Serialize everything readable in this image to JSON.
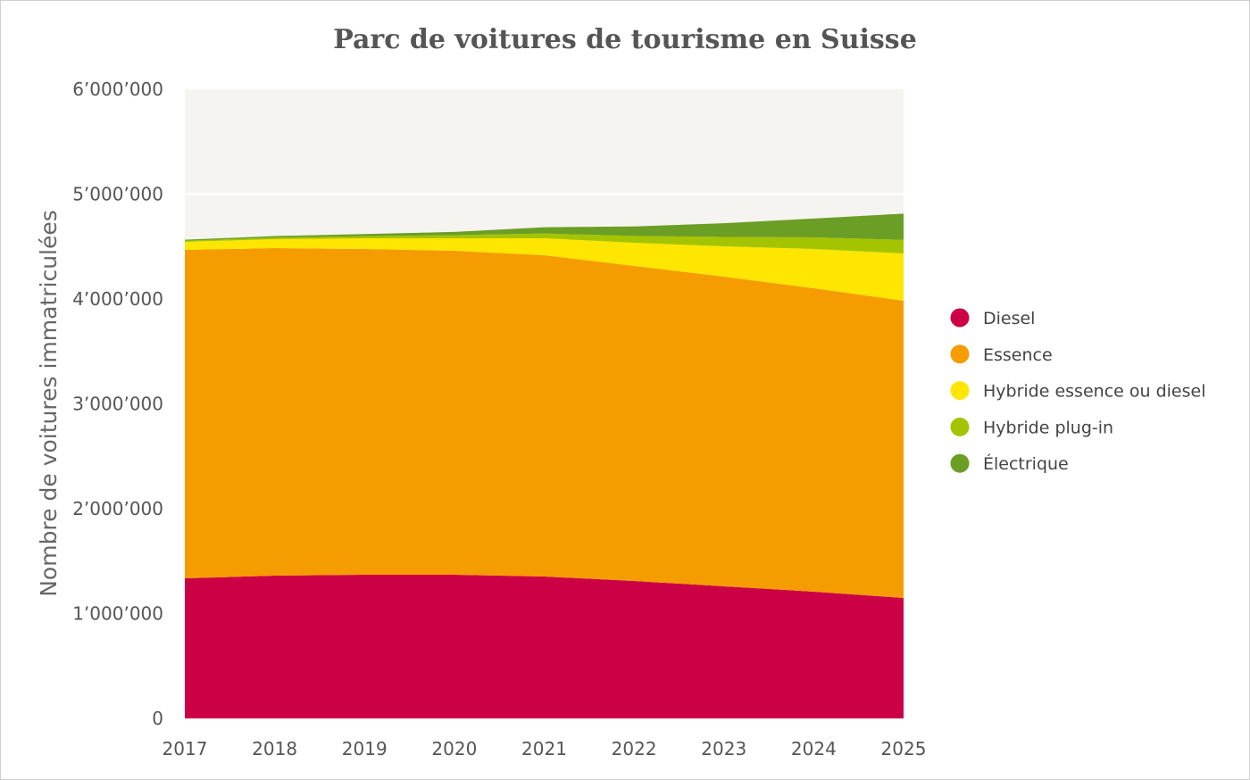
{
  "chart_data": {
    "type": "area",
    "stacked": true,
    "title": "Parc de voitures de tourisme en Suisse",
    "xlabel": "",
    "ylabel": "Nombre de voitures immatriculées",
    "x": [
      "2017",
      "2018",
      "2019",
      "2020",
      "2021",
      "2022",
      "2023",
      "2024",
      "2025"
    ],
    "ylim": [
      0,
      6000000
    ],
    "yticks": [
      0,
      1000000,
      2000000,
      3000000,
      4000000,
      5000000,
      6000000
    ],
    "ytick_labels": [
      "0",
      "1’000’000",
      "2’000’000",
      "3’000’000",
      "4’000’000",
      "5’000’000",
      "6’000’000"
    ],
    "grid": true,
    "legend_position": "right",
    "series": [
      {
        "name": "Diesel",
        "color": "#cc0044",
        "values": [
          1336000,
          1362000,
          1370000,
          1370000,
          1353000,
          1311000,
          1260000,
          1209000,
          1149000
        ]
      },
      {
        "name": "Essence",
        "color": "#f59c00",
        "values": [
          3132000,
          3123000,
          3107000,
          3090000,
          3064000,
          3004000,
          2953000,
          2893000,
          2834000
        ]
      },
      {
        "name": "Hybride essence ou diesel",
        "color": "#ffe600",
        "values": [
          77000,
          85000,
          102000,
          119000,
          162000,
          221000,
          289000,
          375000,
          451000
        ]
      },
      {
        "name": "Hybride plug-in",
        "color": "#a5c400",
        "values": [
          10000,
          15000,
          20000,
          30000,
          45000,
          65000,
          90000,
          110000,
          130000
        ]
      },
      {
        "name": "Électrique",
        "color": "#6a9e25",
        "values": [
          10000,
          15000,
          20000,
          30000,
          60000,
          90000,
          130000,
          180000,
          250000
        ]
      }
    ],
    "plot_background": "#f6f4f0"
  }
}
